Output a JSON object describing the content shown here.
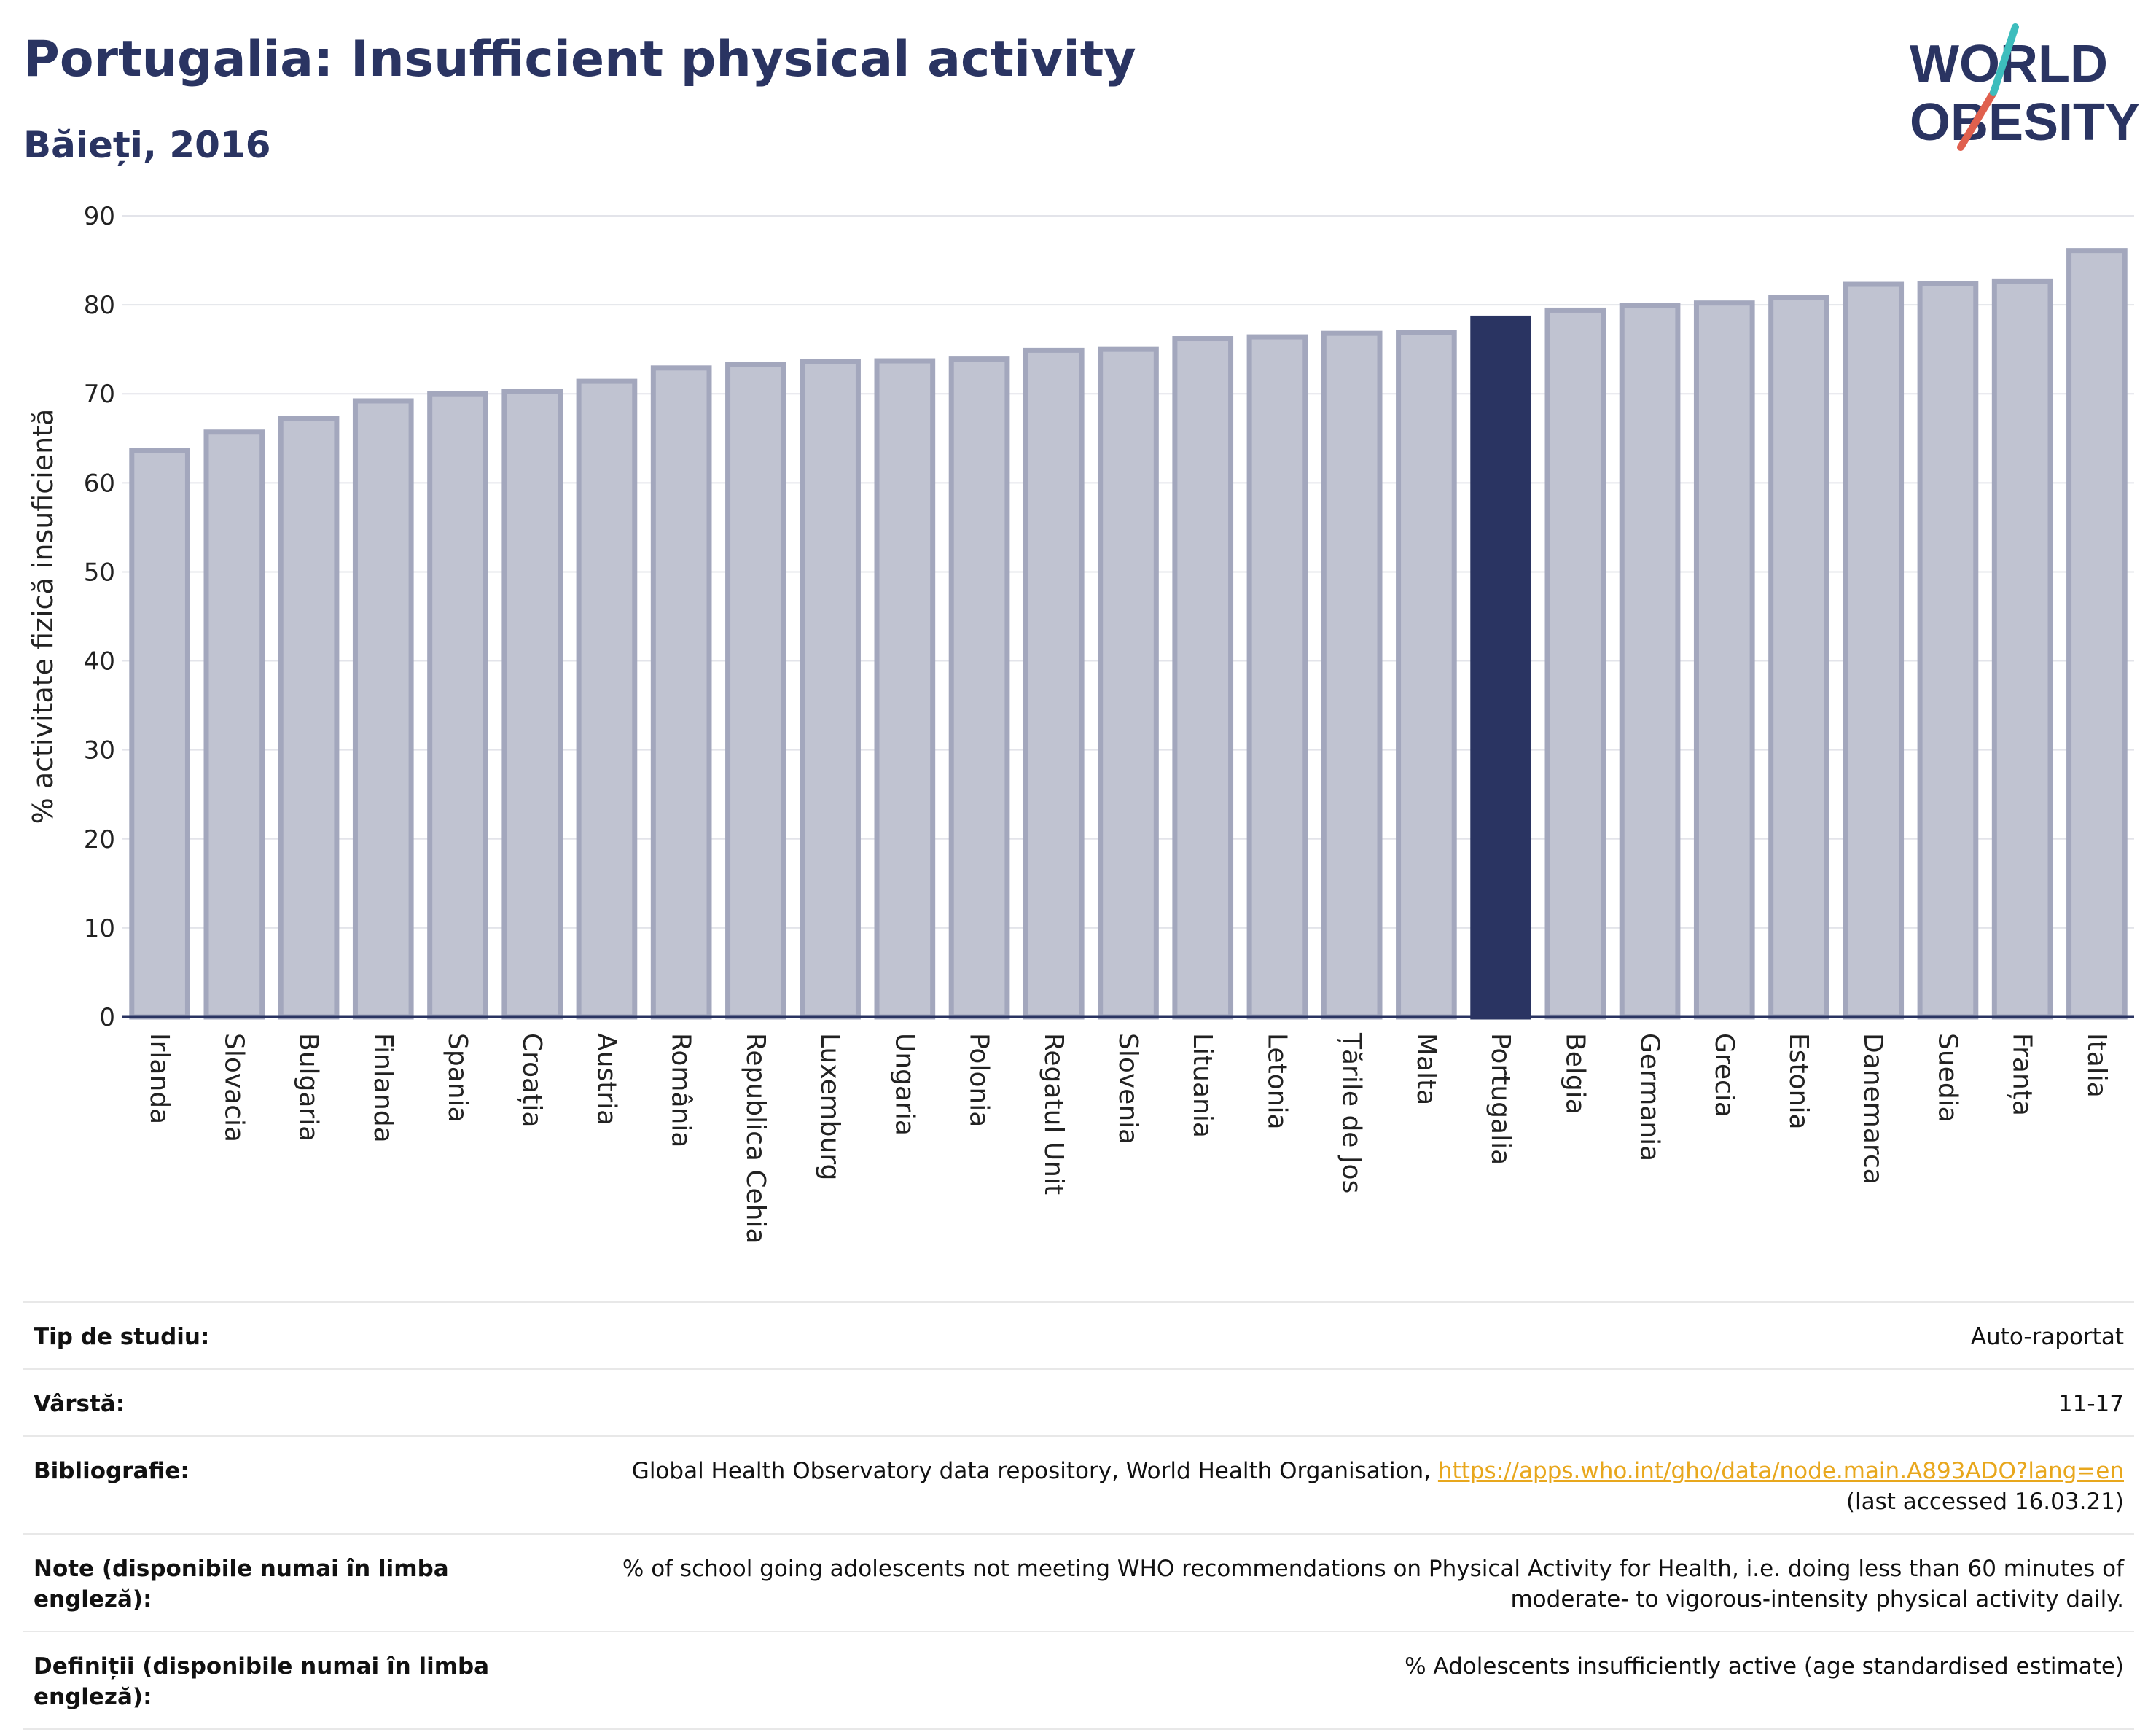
{
  "header": {
    "title": "Portugalia: Insufficient physical activity",
    "subtitle": "Băieți, 2016"
  },
  "logo": {
    "line1": "WORLD",
    "line2": "OBESITY"
  },
  "colors": {
    "highlight": "#2a3462",
    "bar": "#c0c3d1",
    "bar_edge": "#a3a7bd",
    "text": "#2a3462",
    "link": "#e8a71d"
  },
  "chart_data": {
    "type": "bar",
    "ylabel": "% activitate fizică insuficientă",
    "ylim": [
      0,
      90
    ],
    "yticks": [
      0,
      10,
      20,
      30,
      40,
      50,
      60,
      70,
      80,
      90
    ],
    "grid": true,
    "highlight": "Portugalia",
    "categories": [
      "Irlanda",
      "Slovacia",
      "Bulgaria",
      "Finlanda",
      "Spania",
      "Croația",
      "Austria",
      "România",
      "Republica Cehia",
      "Luxemburg",
      "Ungaria",
      "Polonia",
      "Regatul Unit",
      "Slovenia",
      "Lituania",
      "Letonia",
      "Țările de Jos",
      "Malta",
      "Portugalia",
      "Belgia",
      "Germania",
      "Grecia",
      "Estonia",
      "Danemarca",
      "Suedia",
      "Franța",
      "Italia"
    ],
    "values": [
      63.6,
      65.7,
      67.2,
      69.2,
      70.0,
      70.3,
      71.4,
      72.9,
      73.3,
      73.6,
      73.7,
      73.9,
      74.9,
      75.0,
      76.2,
      76.4,
      76.8,
      76.9,
      78.5,
      79.4,
      79.9,
      80.2,
      80.8,
      82.3,
      82.4,
      82.6,
      86.1
    ]
  },
  "info": {
    "rows": [
      {
        "label": "Tip de studiu:",
        "value": "Auto-raportat"
      },
      {
        "label": "Vârstă:",
        "value": "11-17"
      },
      {
        "label": "Bibliografie:",
        "value_pre": "Global Health Observatory data repository, World Health Organisation, ",
        "link": "https://apps.who.int/gho/data/node.main.A893ADO?lang=en",
        "value_post": "(last accessed 16.03.21)"
      },
      {
        "label": "Note (disponibile numai în limba engleză):",
        "value": "% of school going adolescents not meeting WHO recommendations on Physical Activity for Health, i.e. doing less than 60 minutes of moderate- to vigorous-intensity physical activity daily."
      },
      {
        "label": "Definiții (disponibile numai în limba engleză):",
        "value": "% Adolescents insufficiently active (age standardised estimate)"
      }
    ]
  }
}
